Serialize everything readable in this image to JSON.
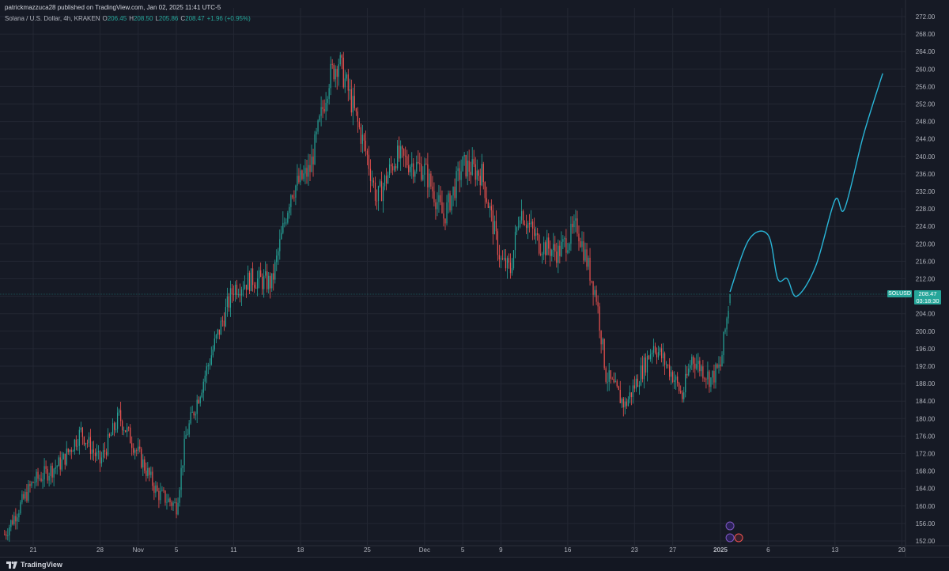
{
  "header": {
    "published_line": "patrickmazzuca28 published on TradingView.com, Jan 02, 2025 11:41 UTC-5",
    "symbol_desc": "Solana / U.S. Dollar, 4h, KRAKEN",
    "o_label": "O",
    "o_value": "206.45",
    "h_label": "H",
    "h_value": "208.50",
    "l_label": "L",
    "l_value": "205.86",
    "c_label": "C",
    "c_value": "208.47",
    "change": "+1.96 (+0.95%)"
  },
  "price_scale": {
    "symbol_tag": "SOLUSD",
    "last_price": "208.47",
    "countdown": "03:18:30"
  },
  "footer": {
    "brand": "TradingView"
  },
  "colors": {
    "background": "#161a25",
    "grid": "#232733",
    "up": "#26a69a",
    "down": "#ef5350",
    "projection": "#29b6d8",
    "axis_text": "#b2b5be"
  },
  "chart_data": {
    "type": "candlestick",
    "symbol": "SOLUSD",
    "timeframe": "4h",
    "exchange": "KRAKEN",
    "y_range": [
      150,
      273
    ],
    "y_ticks": [
      "152.00",
      "156.00",
      "160.00",
      "164.00",
      "168.00",
      "172.00",
      "176.00",
      "180.00",
      "184.00",
      "188.00",
      "192.00",
      "196.00",
      "200.00",
      "204.00",
      "208.00",
      "212.00",
      "216.00",
      "220.00",
      "224.00",
      "228.00",
      "232.00",
      "236.00",
      "240.00",
      "244.00",
      "248.00",
      "252.00",
      "256.00",
      "260.00",
      "264.00",
      "268.00",
      "272.00"
    ],
    "x_ticks": [
      "21",
      "28",
      "Nov",
      "5",
      "11",
      "18",
      "25",
      "Dec",
      "5",
      "9",
      "16",
      "23",
      "27",
      "2025",
      "6",
      "13",
      "20"
    ],
    "last_price": 208.47,
    "anchors": [
      {
        "date": "Oct 18",
        "price": 153.5
      },
      {
        "date": "Oct 21",
        "price": 165.5
      },
      {
        "date": "Oct 24",
        "price": 170.0
      },
      {
        "date": "Oct 26",
        "price": 177.0
      },
      {
        "date": "Oct 28",
        "price": 170.0
      },
      {
        "date": "Oct 30",
        "price": 180.5
      },
      {
        "date": "Nov 1",
        "price": 172.0
      },
      {
        "date": "Nov 3",
        "price": 163.0
      },
      {
        "date": "Nov 5",
        "price": 160.0
      },
      {
        "date": "Nov 6",
        "price": 176.0
      },
      {
        "date": "Nov 9",
        "price": 197.0
      },
      {
        "date": "Nov 11",
        "price": 210.0
      },
      {
        "date": "Nov 13",
        "price": 212.0
      },
      {
        "date": "Nov 15",
        "price": 211.0
      },
      {
        "date": "Nov 17",
        "price": 232.0
      },
      {
        "date": "Nov 19",
        "price": 237.0
      },
      {
        "date": "Nov 21",
        "price": 258.0
      },
      {
        "date": "Nov 22",
        "price": 262.0
      },
      {
        "date": "Nov 23",
        "price": 255.0
      },
      {
        "date": "Nov 25",
        "price": 240.0
      },
      {
        "date": "Nov 26",
        "price": 230.0
      },
      {
        "date": "Nov 28",
        "price": 240.0
      },
      {
        "date": "Dec 1",
        "price": 237.0
      },
      {
        "date": "Dec 3",
        "price": 226.0
      },
      {
        "date": "Dec 5",
        "price": 238.0
      },
      {
        "date": "Dec 7",
        "price": 236.0
      },
      {
        "date": "Dec 9",
        "price": 216.0
      },
      {
        "date": "Dec 10",
        "price": 214.0
      },
      {
        "date": "Dec 11",
        "price": 228.0
      },
      {
        "date": "Dec 13",
        "price": 220.0
      },
      {
        "date": "Dec 15",
        "price": 218.0
      },
      {
        "date": "Dec 17",
        "price": 224.0
      },
      {
        "date": "Dec 19",
        "price": 208.0
      },
      {
        "date": "Dec 20",
        "price": 190.0
      },
      {
        "date": "Dec 22",
        "price": 183.0
      },
      {
        "date": "Dec 24",
        "price": 192.0
      },
      {
        "date": "Dec 25",
        "price": 197.0
      },
      {
        "date": "Dec 27",
        "price": 190.0
      },
      {
        "date": "Dec 28",
        "price": 185.0
      },
      {
        "date": "Dec 29",
        "price": 194.0
      },
      {
        "date": "Dec 31",
        "price": 189.0
      },
      {
        "date": "Jan 1",
        "price": 192.0
      },
      {
        "date": "Jan 2",
        "price": 208.5
      }
    ],
    "projection": {
      "name": "",
      "points": [
        {
          "date": "Jan 2",
          "price": 209.0
        },
        {
          "date": "Jan 4",
          "price": 221.0
        },
        {
          "date": "Jan 6",
          "price": 222.0
        },
        {
          "date": "Jan 7",
          "price": 212.0
        },
        {
          "date": "Jan 8",
          "price": 212.0
        },
        {
          "date": "Jan 9",
          "price": 208.0
        },
        {
          "date": "Jan 11",
          "price": 215.0
        },
        {
          "date": "Jan 13",
          "price": 230.0
        },
        {
          "date": "Jan 14",
          "price": 228.0
        },
        {
          "date": "Jan 16",
          "price": 245.0
        },
        {
          "date": "Jan 18",
          "price": 259.0
        }
      ]
    }
  }
}
